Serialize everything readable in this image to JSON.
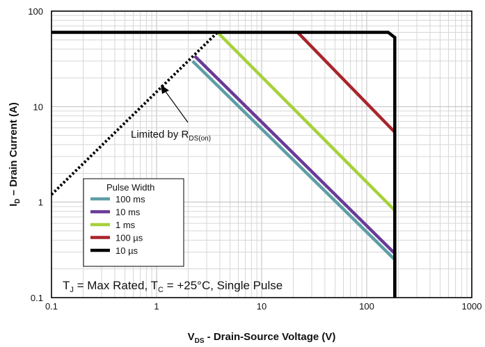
{
  "chart_data": {
    "type": "line",
    "xscale": "log",
    "yscale": "log",
    "xlim": [
      0.1,
      1000
    ],
    "ylim": [
      0.1,
      100
    ],
    "grid": true,
    "xticks": [
      "0.1",
      "1",
      "10",
      "100",
      "1000"
    ],
    "yticks": [
      "0.1",
      "1",
      "10",
      "100"
    ],
    "xlabel": {
      "main": "V",
      "sub": "DS",
      "rest": " - Drain-Source Voltage (V)"
    },
    "ylabel": {
      "main": "I",
      "sub": "D",
      "rest": " – Drain Current (A)"
    },
    "legend": {
      "title": "Pulse Width",
      "placement": "bottom-left",
      "entries": [
        "100 ms",
        "10 ms",
        "1 ms",
        "100 µs",
        "10 µs"
      ]
    },
    "series": [
      {
        "name": "100 ms",
        "color": "#5e9ea6",
        "x": [
          2.2,
          185,
          185
        ],
        "y": [
          30,
          0.25,
          0.1
        ]
      },
      {
        "name": "10 ms",
        "color": "#6a3a97",
        "x": [
          2.3,
          185,
          185
        ],
        "y": [
          34,
          0.29,
          0.1
        ]
      },
      {
        "name": "1 ms",
        "color": "#a6d13b",
        "x": [
          3.8,
          185,
          185
        ],
        "y": [
          60,
          0.82,
          0.1
        ]
      },
      {
        "name": "100 µs",
        "color": "#a8252c",
        "x": [
          22,
          185
        ],
        "y": [
          60,
          5.4
        ]
      },
      {
        "name": "10 µs",
        "color": "#000000",
        "x": [
          0.1,
          160,
          185,
          185
        ],
        "y": [
          60,
          60,
          53,
          0.1
        ]
      }
    ],
    "rds_limit": {
      "x": [
        0.1,
        3.8
      ],
      "y": [
        1.2,
        60
      ],
      "style": "dotted"
    },
    "annotation": {
      "text": "Limited by R",
      "sub": "DS(on)",
      "points_to": [
        1,
        15
      ]
    },
    "condition": {
      "parts": [
        {
          "t": "T"
        },
        {
          "t": "J",
          "sub": true
        },
        {
          "t": " = Max Rated, T"
        },
        {
          "t": "C",
          "sub": true
        },
        {
          "t": " = +25°C, Single Pulse"
        }
      ]
    }
  }
}
